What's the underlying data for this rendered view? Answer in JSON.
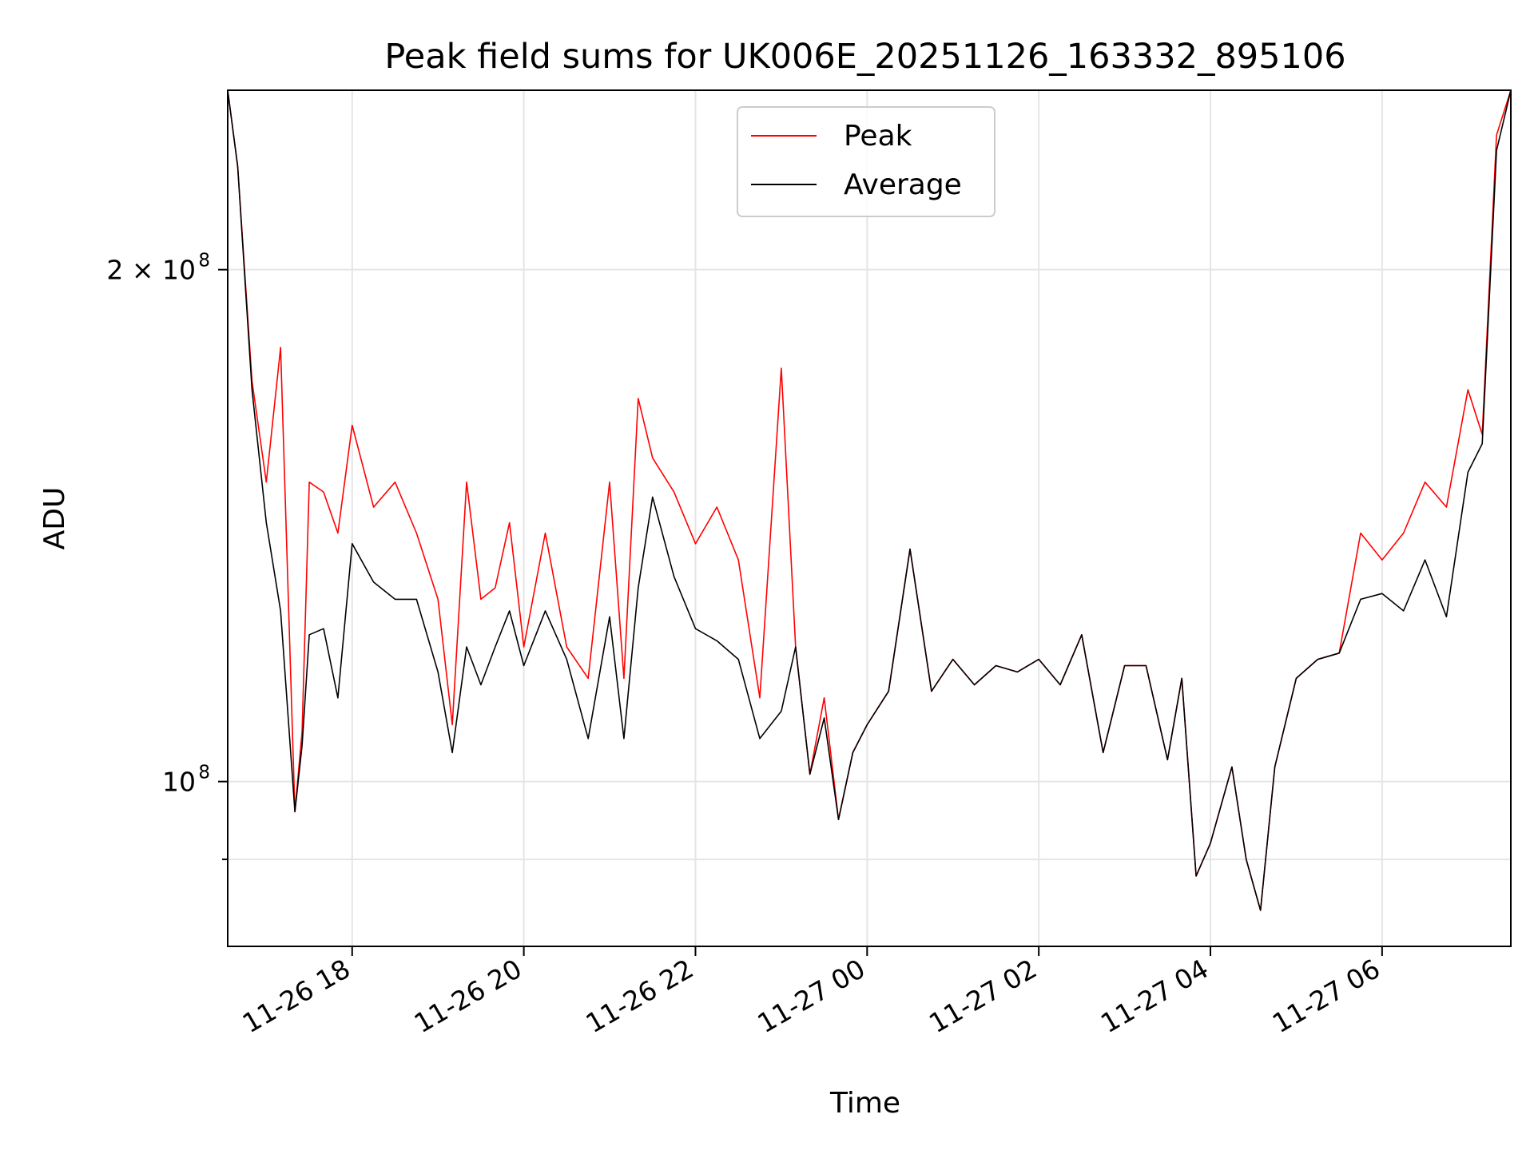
{
  "chart_data": {
    "type": "line",
    "title": "Peak field sums for UK006E_20251126_163332_895106",
    "xlabel": "Time",
    "ylabel": "ADU",
    "yscale": "log",
    "ylim": [
      80000000,
      255000000
    ],
    "xlim": [
      "2025-11-26T16:33",
      "2025-11-27T07:30"
    ],
    "grid": true,
    "legend": {
      "placement": "top-center"
    },
    "x_ticks": [
      {
        "value": "2025-11-26T18:00",
        "label": "11-26 18"
      },
      {
        "value": "2025-11-26T20:00",
        "label": "11-26 20"
      },
      {
        "value": "2025-11-26T22:00",
        "label": "11-26 22"
      },
      {
        "value": "2025-11-27T00:00",
        "label": "11-27 00"
      },
      {
        "value": "2025-11-27T02:00",
        "label": "11-27 02"
      },
      {
        "value": "2025-11-27T04:00",
        "label": "11-27 04"
      },
      {
        "value": "2025-11-27T06:00",
        "label": "11-27 06"
      }
    ],
    "y_ticks": [
      {
        "value": 100000000,
        "label": "10",
        "exp": "8"
      },
      {
        "value": 200000000,
        "label": "2 × 10",
        "exp": "8"
      }
    ],
    "y_minor_ticks": [
      90000000
    ],
    "x": [
      "2025-11-26T16:33",
      "2025-11-26T16:40",
      "2025-11-26T16:50",
      "2025-11-26T17:00",
      "2025-11-26T17:10",
      "2025-11-26T17:20",
      "2025-11-26T17:25",
      "2025-11-26T17:30",
      "2025-11-26T17:40",
      "2025-11-26T17:50",
      "2025-11-26T18:00",
      "2025-11-26T18:15",
      "2025-11-26T18:30",
      "2025-11-26T18:45",
      "2025-11-26T19:00",
      "2025-11-26T19:10",
      "2025-11-26T19:20",
      "2025-11-26T19:30",
      "2025-11-26T19:40",
      "2025-11-26T19:50",
      "2025-11-26T20:00",
      "2025-11-26T20:15",
      "2025-11-26T20:30",
      "2025-11-26T20:45",
      "2025-11-26T21:00",
      "2025-11-26T21:10",
      "2025-11-26T21:20",
      "2025-11-26T21:30",
      "2025-11-26T21:45",
      "2025-11-26T22:00",
      "2025-11-26T22:15",
      "2025-11-26T22:30",
      "2025-11-26T22:45",
      "2025-11-26T23:00",
      "2025-11-26T23:10",
      "2025-11-26T23:20",
      "2025-11-26T23:30",
      "2025-11-26T23:40",
      "2025-11-26T23:50",
      "2025-11-27T00:00",
      "2025-11-27T00:15",
      "2025-11-27T00:30",
      "2025-11-27T00:45",
      "2025-11-27T01:00",
      "2025-11-27T01:15",
      "2025-11-27T01:30",
      "2025-11-27T01:45",
      "2025-11-27T02:00",
      "2025-11-27T02:15",
      "2025-11-27T02:30",
      "2025-11-27T02:45",
      "2025-11-27T03:00",
      "2025-11-27T03:15",
      "2025-11-27T03:30",
      "2025-11-27T03:40",
      "2025-11-27T03:50",
      "2025-11-27T04:00",
      "2025-11-27T04:15",
      "2025-11-27T04:25",
      "2025-11-27T04:35",
      "2025-11-27T04:45",
      "2025-11-27T05:00",
      "2025-11-27T05:15",
      "2025-11-27T05:30",
      "2025-11-27T05:45",
      "2025-11-27T06:00",
      "2025-11-27T06:15",
      "2025-11-27T06:30",
      "2025-11-27T06:45",
      "2025-11-27T07:00",
      "2025-11-27T07:10",
      "2025-11-27T07:20",
      "2025-11-27T07:30"
    ],
    "series": [
      {
        "name": "Average",
        "color": "#000000",
        "values": [
          255000000,
          230000000,
          170000000,
          142000000,
          126000000,
          96000000,
          105000000,
          122000000,
          123000000,
          112000000,
          138000000,
          131000000,
          128000000,
          128000000,
          116000000,
          104000000,
          120000000,
          114000000,
          120000000,
          126000000,
          117000000,
          126000000,
          118000000,
          106000000,
          125000000,
          106000000,
          130000000,
          147000000,
          132000000,
          123000000,
          121000000,
          118000000,
          106000000,
          110000000,
          120000000,
          101000000,
          109000000,
          95000000,
          104000000,
          108000000,
          113000000,
          137000000,
          113000000,
          118000000,
          114000000,
          117000000,
          116000000,
          118000000,
          114000000,
          122000000,
          104000000,
          117000000,
          117000000,
          103000000,
          115000000,
          88000000,
          92000000,
          102000000,
          90000000,
          84000000,
          102000000,
          115000000,
          118000000,
          119000000,
          128000000,
          129000000,
          126000000,
          135000000,
          125000000,
          152000000,
          158000000,
          235000000,
          255000000
        ]
      },
      {
        "name": "Peak",
        "color": "#ff0000",
        "values": [
          255000000,
          230000000,
          172000000,
          150000000,
          180000000,
          96000000,
          107000000,
          150000000,
          148000000,
          140000000,
          162000000,
          145000000,
          150000000,
          140000000,
          128000000,
          108000000,
          150000000,
          128000000,
          130000000,
          142000000,
          120000000,
          140000000,
          120000000,
          115000000,
          150000000,
          115000000,
          168000000,
          155000000,
          148000000,
          138000000,
          145000000,
          135000000,
          112000000,
          175000000,
          120000000,
          101000000,
          112000000,
          95000000,
          104000000,
          108000000,
          113000000,
          137000000,
          113000000,
          118000000,
          114000000,
          117000000,
          116000000,
          118000000,
          114000000,
          122000000,
          104000000,
          117000000,
          117000000,
          103000000,
          115000000,
          88000000,
          92000000,
          102000000,
          90000000,
          84000000,
          102000000,
          115000000,
          118000000,
          119000000,
          140000000,
          135000000,
          140000000,
          150000000,
          145000000,
          170000000,
          160000000,
          240000000,
          255000000
        ]
      }
    ]
  }
}
